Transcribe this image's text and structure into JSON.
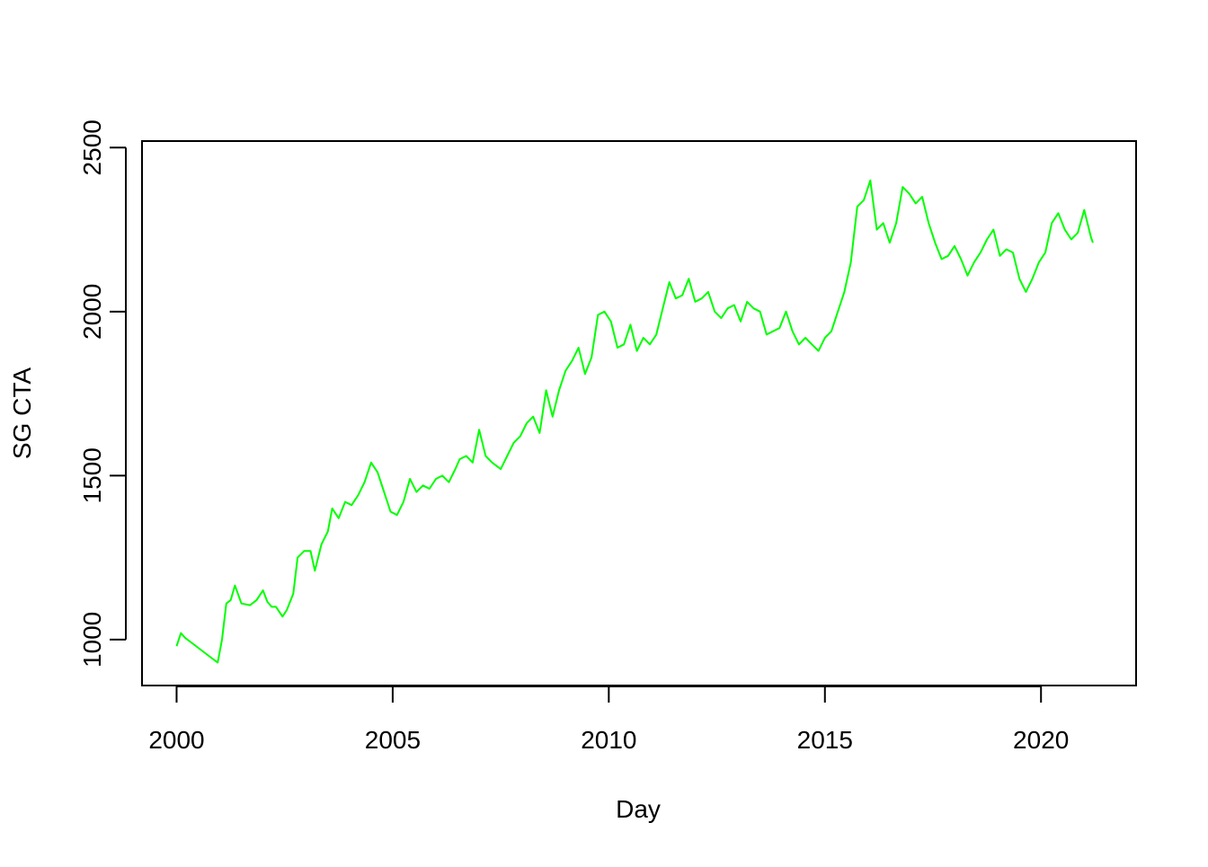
{
  "chart_data": {
    "type": "line",
    "title": "",
    "xlabel": "Day",
    "ylabel": "SG CTA",
    "xlim": [
      1999.2,
      2022.2
    ],
    "ylim": [
      860,
      2520
    ],
    "x_ticks": [
      {
        "value": 2000,
        "label": "2000"
      },
      {
        "value": 2005,
        "label": "2005"
      },
      {
        "value": 2010,
        "label": "2010"
      },
      {
        "value": 2015,
        "label": "2015"
      },
      {
        "value": 2020,
        "label": "2020"
      }
    ],
    "y_ticks": [
      {
        "value": 1000,
        "label": "1000"
      },
      {
        "value": 1500,
        "label": "1500"
      },
      {
        "value": 2000,
        "label": "2000"
      },
      {
        "value": 2500,
        "label": "2500"
      }
    ],
    "grid": false,
    "legend": "none",
    "series": [
      {
        "color": "#00ff00",
        "x": [
          2000.0,
          2000.1,
          2000.2,
          2000.35,
          2000.5,
          2000.65,
          2000.8,
          2000.95,
          2001.05,
          2001.15,
          2001.25,
          2001.35,
          2001.5,
          2001.7,
          2001.85,
          2002.0,
          2002.1,
          2002.2,
          2002.3,
          2002.45,
          2002.55,
          2002.7,
          2002.8,
          2002.95,
          2003.1,
          2003.2,
          2003.35,
          2003.5,
          2003.6,
          2003.75,
          2003.9,
          2004.05,
          2004.2,
          2004.35,
          2004.5,
          2004.65,
          2004.8,
          2004.95,
          2005.1,
          2005.25,
          2005.4,
          2005.55,
          2005.7,
          2005.85,
          2006.0,
          2006.15,
          2006.3,
          2006.45,
          2006.55,
          2006.7,
          2006.85,
          2007.0,
          2007.15,
          2007.3,
          2007.5,
          2007.65,
          2007.8,
          2007.95,
          2008.1,
          2008.25,
          2008.4,
          2008.55,
          2008.7,
          2008.85,
          2009.0,
          2009.15,
          2009.3,
          2009.45,
          2009.6,
          2009.75,
          2009.9,
          2010.05,
          2010.2,
          2010.35,
          2010.5,
          2010.65,
          2010.8,
          2010.95,
          2011.1,
          2011.25,
          2011.4,
          2011.55,
          2011.7,
          2011.85,
          2012.0,
          2012.15,
          2012.3,
          2012.45,
          2012.6,
          2012.75,
          2012.9,
          2013.05,
          2013.2,
          2013.35,
          2013.5,
          2013.65,
          2013.8,
          2013.95,
          2014.1,
          2014.25,
          2014.4,
          2014.55,
          2014.7,
          2014.85,
          2015.0,
          2015.15,
          2015.3,
          2015.45,
          2015.6,
          2015.75,
          2015.9,
          2016.05,
          2016.2,
          2016.35,
          2016.5,
          2016.65,
          2016.8,
          2016.95,
          2017.1,
          2017.25,
          2017.4,
          2017.55,
          2017.7,
          2017.85,
          2018.0,
          2018.15,
          2018.3,
          2018.45,
          2018.6,
          2018.75,
          2018.9,
          2019.05,
          2019.2,
          2019.35,
          2019.5,
          2019.65,
          2019.8,
          2019.95,
          2020.1,
          2020.25,
          2020.4,
          2020.55,
          2020.7,
          2020.85,
          2021.0,
          2021.15,
          2021.2
        ],
        "y": [
          980,
          1020,
          1005,
          990,
          975,
          960,
          945,
          930,
          1000,
          1110,
          1120,
          1165,
          1110,
          1105,
          1120,
          1150,
          1115,
          1100,
          1100,
          1070,
          1090,
          1140,
          1250,
          1270,
          1270,
          1210,
          1290,
          1330,
          1400,
          1370,
          1420,
          1410,
          1440,
          1480,
          1540,
          1510,
          1450,
          1390,
          1380,
          1420,
          1490,
          1450,
          1470,
          1460,
          1490,
          1500,
          1480,
          1520,
          1550,
          1560,
          1540,
          1640,
          1560,
          1540,
          1520,
          1560,
          1600,
          1620,
          1660,
          1680,
          1630,
          1760,
          1680,
          1760,
          1820,
          1850,
          1890,
          1810,
          1860,
          1990,
          2000,
          1970,
          1890,
          1900,
          1960,
          1880,
          1920,
          1900,
          1930,
          2010,
          2090,
          2040,
          2050,
          2100,
          2030,
          2040,
          2060,
          2000,
          1980,
          2010,
          2020,
          1970,
          2030,
          2010,
          2000,
          1930,
          1940,
          1950,
          2000,
          1940,
          1900,
          1920,
          1900,
          1880,
          1920,
          1940,
          2000,
          2060,
          2150,
          2320,
          2340,
          2400,
          2250,
          2270,
          2210,
          2270,
          2380,
          2360,
          2330,
          2350,
          2270,
          2210,
          2160,
          2170,
          2200,
          2160,
          2110,
          2150,
          2180,
          2220,
          2250,
          2170,
          2190,
          2180,
          2100,
          2060,
          2100,
          2150,
          2180,
          2270,
          2300,
          2250,
          2220,
          2240,
          2310,
          2230,
          2210
        ]
      }
    ]
  }
}
